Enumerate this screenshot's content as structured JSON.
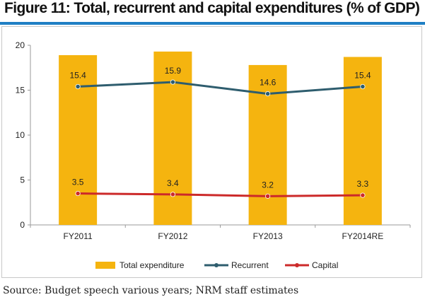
{
  "title": "Figure 11: Total, recurrent and capital expenditures (% of GDP)",
  "source": "Source: Budget speech various years; NRM staff estimates",
  "colors": {
    "title_rule": "#1f7fc4",
    "bar": "#f5b40f",
    "recurrent": "#2e5d6e",
    "capital": "#cc2a2a",
    "grid": "#d9d9d9",
    "axis": "#9a9a9a"
  },
  "chart_data": {
    "type": "bar",
    "categories": [
      "FY2011",
      "FY2012",
      "FY2013",
      "FY2014RE"
    ],
    "ylim": [
      0,
      20
    ],
    "yticks": [
      0,
      5,
      10,
      15,
      20
    ],
    "grid": false,
    "legend_position": "bottom",
    "series": [
      {
        "name": "Total expenditure",
        "kind": "bar",
        "values": [
          18.9,
          19.3,
          17.8,
          18.7
        ],
        "labels": []
      },
      {
        "name": "Recurrent",
        "kind": "line",
        "values": [
          15.4,
          15.9,
          14.6,
          15.4
        ],
        "labels": [
          "15.4",
          "15.9",
          "14.6",
          "15.4"
        ]
      },
      {
        "name": "Capital",
        "kind": "line",
        "values": [
          3.5,
          3.4,
          3.2,
          3.3
        ],
        "labels": [
          "3.5",
          "3.4",
          "3.2",
          "3.3"
        ]
      }
    ]
  }
}
